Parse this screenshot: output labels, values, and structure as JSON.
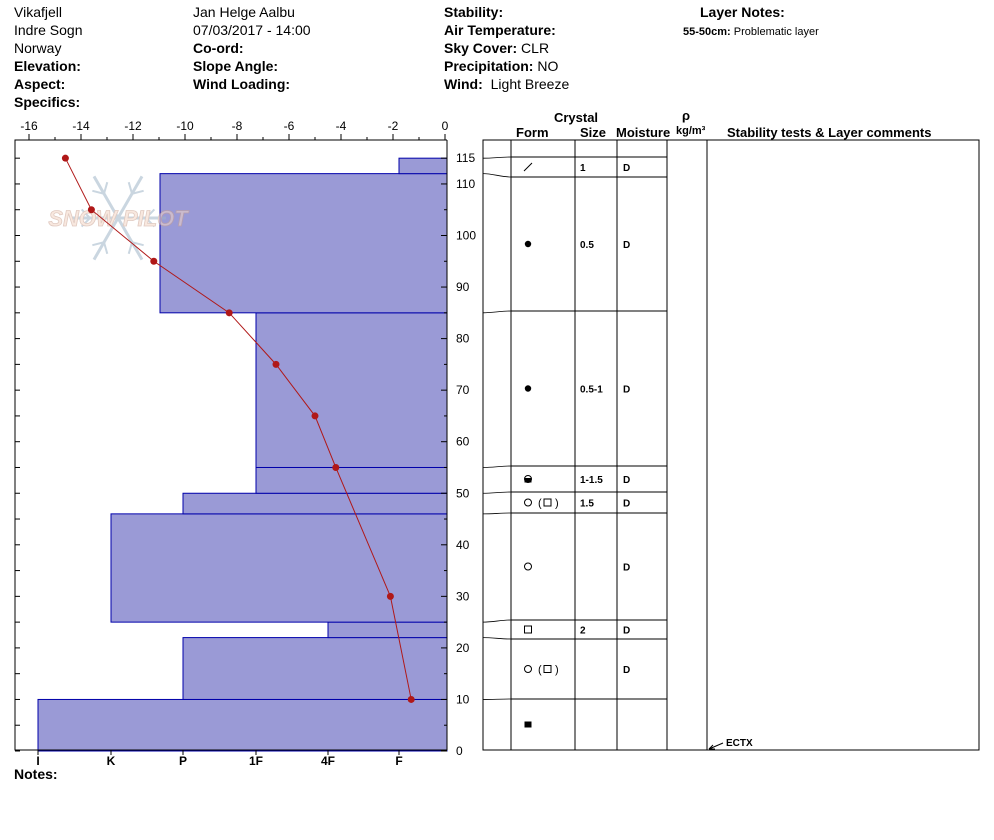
{
  "header": {
    "location": "Vikafjell",
    "region": "Indre Sogn",
    "country": "Norway",
    "elevation_label": "Elevation:",
    "aspect_label": "Aspect:",
    "specifics_label": "Specifics:",
    "observer": "Jan Helge Aalbu",
    "datetime": "07/03/2017 - 14:00",
    "coord_label": "Co-ord:",
    "slope_label": "Slope Angle:",
    "wind_loading_label": "Wind Loading:",
    "stability_label": "Stability:",
    "air_temp_label": "Air Temperature:",
    "sky_label": "Sky Cover:",
    "sky_value": "CLR",
    "precip_label": "Precipitation:",
    "precip_value": "NO",
    "wind_label": "Wind:",
    "wind_value": "Light Breeze",
    "layer_notes_label": "Layer Notes:",
    "layer_note_depth": "55-50cm:",
    "layer_note_text": "Problematic layer"
  },
  "watermark": "SNOW PILOT",
  "notes_label": "Notes:",
  "table_headers": {
    "crystal": "Crystal",
    "form": "Form",
    "size": "Size",
    "moisture": "Moisture",
    "rho": "ρ",
    "density_unit": "kg/m³",
    "comments": "Stability tests & Layer comments"
  },
  "test_result": "ECTX",
  "colors": {
    "hardness_fill": "#9a9ad6",
    "hardness_stroke": "#0000aa",
    "temp_line": "#b01818"
  },
  "chart_data": {
    "type": "snow-profile",
    "temperature_axis": {
      "ticks": [
        -16,
        -14,
        -12,
        -10,
        -8,
        -6,
        -4,
        -2,
        0
      ],
      "range": [
        -16,
        0
      ]
    },
    "height_axis": {
      "ticks": [
        0,
        10,
        20,
        30,
        40,
        50,
        60,
        70,
        80,
        90,
        100,
        110,
        115
      ],
      "range": [
        0,
        117
      ]
    },
    "hardness_axis": {
      "ticks": [
        "I",
        "K",
        "P",
        "1F",
        "4F",
        "F"
      ]
    },
    "hardness_layers": [
      {
        "top": 10,
        "bottom": 0,
        "hardness": "I"
      },
      {
        "top": 22,
        "bottom": 10,
        "hardness": "P"
      },
      {
        "top": 25,
        "bottom": 22,
        "hardness": "4F"
      },
      {
        "top": 46,
        "bottom": 25,
        "hardness": "K"
      },
      {
        "top": 50,
        "bottom": 46,
        "hardness": "P"
      },
      {
        "top": 55,
        "bottom": 50,
        "hardness": "1F"
      },
      {
        "top": 85,
        "bottom": 55,
        "hardness": "1F"
      },
      {
        "top": 112,
        "bottom": 85,
        "hardness": "P-"
      },
      {
        "top": 115,
        "bottom": 112,
        "hardness": "F"
      }
    ],
    "temperature_profile": [
      {
        "height": 115,
        "temp": -14.6
      },
      {
        "height": 105,
        "temp": -13.6
      },
      {
        "height": 95,
        "temp": -11.2
      },
      {
        "height": 85,
        "temp": -8.3
      },
      {
        "height": 75,
        "temp": -6.5
      },
      {
        "height": 65,
        "temp": -5.0
      },
      {
        "height": 55,
        "temp": -4.2
      },
      {
        "height": 30,
        "temp": -2.1
      },
      {
        "height": 10,
        "temp": -1.3
      }
    ],
    "layers": [
      {
        "top": 115,
        "bottom": 112,
        "form": "slash",
        "size": "1",
        "moisture": "D"
      },
      {
        "top": 112,
        "bottom": 85,
        "form": "dot",
        "size": "0.5",
        "moisture": "D"
      },
      {
        "top": 85,
        "bottom": 55,
        "form": "dot",
        "size": "0.5-1",
        "moisture": "D"
      },
      {
        "top": 55,
        "bottom": 50,
        "form": "halfcircle",
        "size": "1-1.5",
        "moisture": "D"
      },
      {
        "top": 50,
        "bottom": 46,
        "form": "circle-square",
        "size": "1.5",
        "moisture": "D"
      },
      {
        "top": 46,
        "bottom": 25,
        "form": "circle",
        "size": "",
        "moisture": "D"
      },
      {
        "top": 25,
        "bottom": 22,
        "form": "square",
        "size": "2",
        "moisture": "D"
      },
      {
        "top": 22,
        "bottom": 10,
        "form": "circle-square",
        "size": "",
        "moisture": "D"
      },
      {
        "top": 10,
        "bottom": 0,
        "form": "filled-square",
        "size": "",
        "moisture": ""
      }
    ],
    "test_height": 0
  }
}
